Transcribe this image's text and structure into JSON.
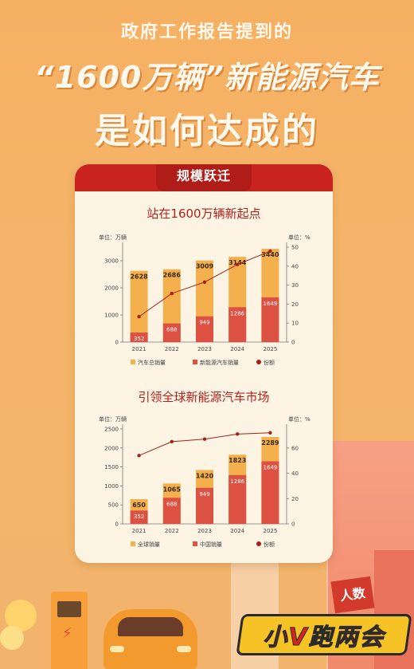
{
  "header": {
    "line1": "政府工作报告提到的",
    "line2": "“1600万辆”新能源汽车",
    "line3": "是如何达成的"
  },
  "card": {
    "tab": "规模跃迁"
  },
  "logo": {
    "text": "小V跑两会",
    "watermark": "人数"
  },
  "colors": {
    "total": "#f4b04c",
    "ev": "#dc5142",
    "share": "#a5211b",
    "axis": "#444444"
  },
  "chart_data": [
    {
      "type": "bar",
      "title": "站在1600万辆新起点",
      "categories": [
        "2021",
        "2022",
        "2023",
        "2024",
        "2025"
      ],
      "series": [
        {
          "name": "汽车总销量",
          "values": [
            2628,
            2686,
            3009,
            3144,
            3440
          ]
        },
        {
          "name": "新能源汽车销量",
          "values": [
            352,
            688,
            949,
            1286,
            1649
          ]
        },
        {
          "name": "份额",
          "type": "line",
          "axis": "right",
          "values": [
            13.4,
            25.6,
            31.6,
            40.9,
            47.9
          ]
        }
      ],
      "ylabel": "单位：万辆",
      "y2label": "单位：%",
      "ylim": [
        0,
        3500
      ],
      "yticks": [
        0,
        1000,
        2000,
        3000
      ],
      "y2lim": [
        0,
        50
      ],
      "y2ticks": [
        0,
        10,
        20,
        30,
        40,
        50
      ],
      "legend": [
        "汽车总销量",
        "新能源汽车销量",
        "份额"
      ]
    },
    {
      "type": "bar",
      "title": "引领全球新能源汽车市场",
      "categories": [
        "2021",
        "2022",
        "2023",
        "2024",
        "2025"
      ],
      "series": [
        {
          "name": "全球销量",
          "values": [
            650,
            1065,
            1420,
            1823,
            2289
          ]
        },
        {
          "name": "中国销量",
          "values": [
            352,
            688,
            949,
            1286,
            1649
          ]
        },
        {
          "name": "份额",
          "type": "line",
          "axis": "right",
          "values": [
            54,
            65,
            67,
            71,
            72
          ]
        }
      ],
      "ylabel": "单位：万辆",
      "y2label": "单位：%",
      "ylim": [
        0,
        2500
      ],
      "yticks": [
        0,
        500,
        1000,
        1500,
        2000,
        2500
      ],
      "y2lim": [
        0,
        75
      ],
      "y2ticks": [
        0,
        20,
        40,
        60
      ],
      "legend": [
        "全球销量",
        "中国销量",
        "份额"
      ]
    }
  ]
}
